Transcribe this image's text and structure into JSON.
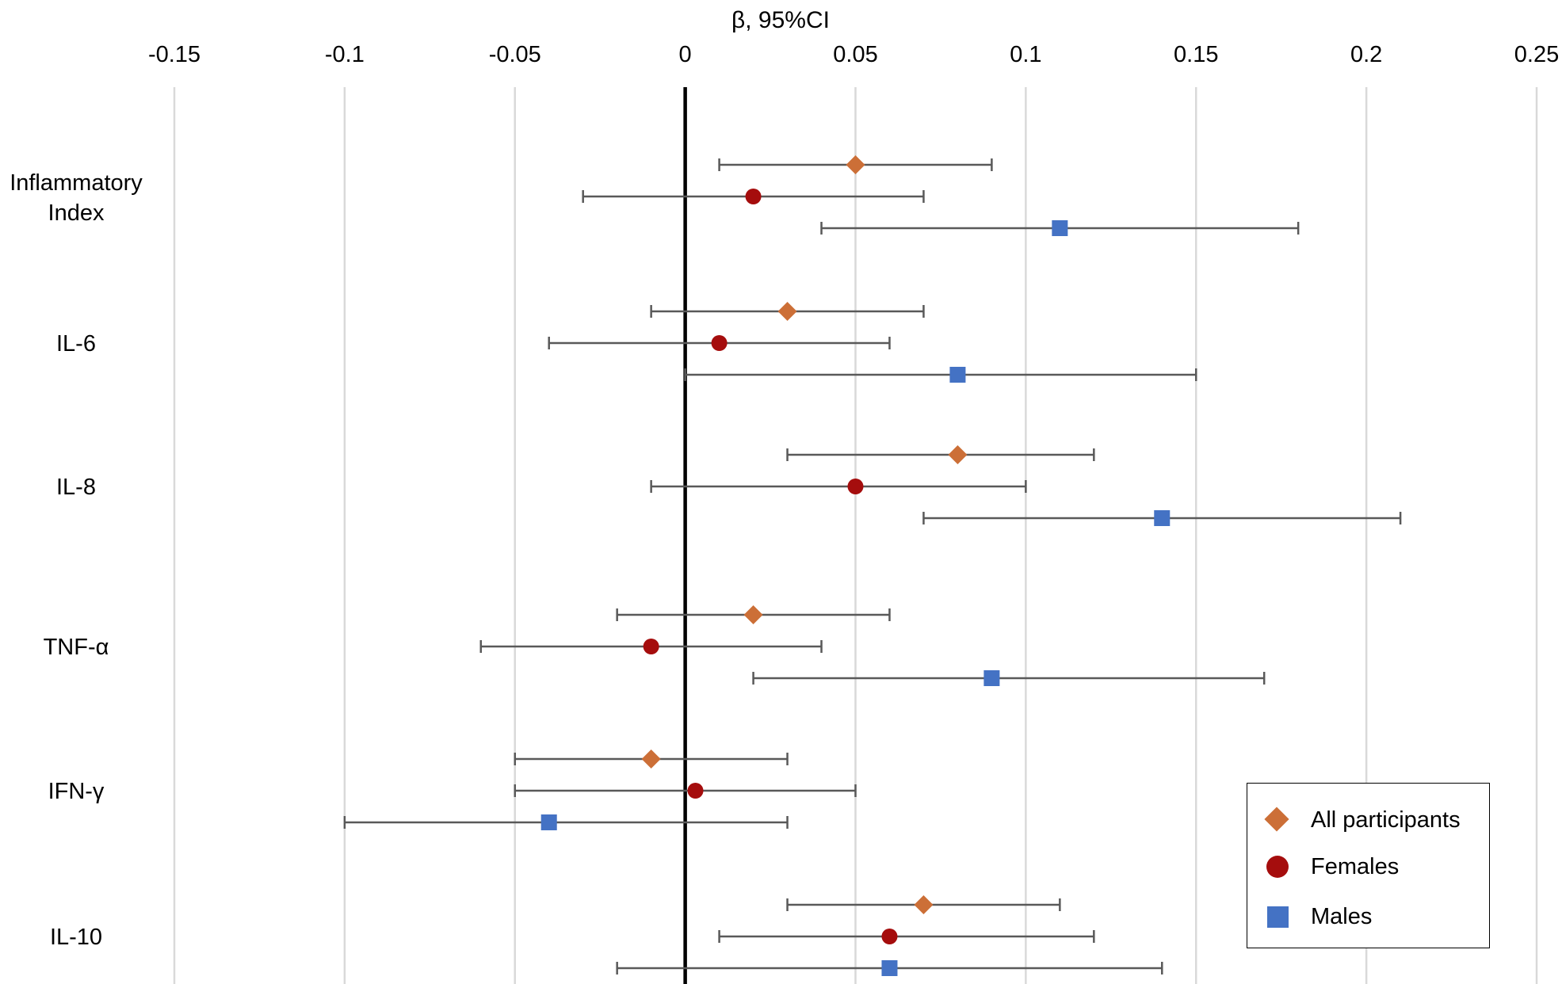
{
  "chart_data": {
    "type": "scatter",
    "subtype": "forest-plot",
    "title": "",
    "xlabel": "β, 95%CI",
    "ylabel": "",
    "xlim": [
      -0.15,
      0.25
    ],
    "x_ticks": [
      "-0.15",
      "-0.1",
      "-0.05",
      "0",
      "0.05",
      "0.1",
      "0.15",
      "0.2",
      "0.25"
    ],
    "grid": true,
    "legend_position": "bottom-right",
    "categories": [
      "Inflammatory Index",
      "IL-6",
      "IL-8",
      "TNF-α",
      "IFN-γ",
      "IL-10"
    ],
    "category_lines": [
      [
        "Inflammatory",
        "Index"
      ],
      [
        "IL-6"
      ],
      [
        "IL-8"
      ],
      [
        "TNF-α"
      ],
      [
        "IFN-γ"
      ],
      [
        "IL-10"
      ]
    ],
    "series": [
      {
        "name": "All participants",
        "marker": "diamond",
        "color": "#cc6f37",
        "values": [
          0.05,
          0.03,
          0.08,
          0.02,
          -0.01,
          0.07
        ],
        "ci_low": [
          0.01,
          -0.01,
          0.03,
          -0.02,
          -0.05,
          0.03
        ],
        "ci_high": [
          0.09,
          0.07,
          0.12,
          0.06,
          0.03,
          0.11
        ]
      },
      {
        "name": "Females",
        "marker": "circle",
        "color": "#a50d0d",
        "values": [
          0.02,
          0.01,
          0.05,
          -0.01,
          0.003,
          0.06
        ],
        "ci_low": [
          -0.03,
          -0.04,
          -0.01,
          -0.06,
          -0.05,
          0.01
        ],
        "ci_high": [
          0.07,
          0.06,
          0.1,
          0.04,
          0.05,
          0.12
        ]
      },
      {
        "name": "Males",
        "marker": "square",
        "color": "#4472c4",
        "values": [
          0.11,
          0.08,
          0.14,
          0.09,
          -0.04,
          0.06
        ],
        "ci_low": [
          0.04,
          0.0,
          0.07,
          0.02,
          -0.1,
          -0.02
        ],
        "ci_high": [
          0.18,
          0.15,
          0.21,
          0.17,
          0.03,
          0.14
        ]
      }
    ]
  }
}
